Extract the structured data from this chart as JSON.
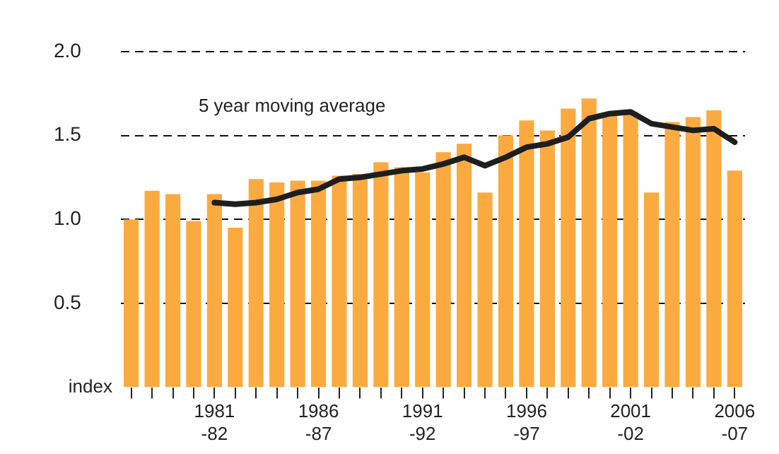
{
  "chart_data": {
    "type": "bar",
    "ylabel": "index",
    "annotations": [
      "5 year moving average"
    ],
    "categories": [
      null,
      null,
      null,
      null,
      "1981\n-82",
      null,
      null,
      null,
      null,
      "1986\n-87",
      null,
      null,
      null,
      null,
      "1991\n-92",
      null,
      null,
      null,
      null,
      "1996\n-97",
      null,
      null,
      null,
      null,
      "2001\n-02",
      null,
      null,
      null,
      null,
      "2006\n-07"
    ],
    "series": [
      {
        "color": "#fbaa40",
        "values": [
          1.0,
          1.17,
          1.15,
          0.99,
          1.15,
          0.95,
          1.24,
          1.22,
          1.23,
          1.23,
          1.26,
          1.27,
          1.34,
          1.31,
          1.28,
          1.4,
          1.45,
          1.16,
          1.5,
          1.59,
          1.53,
          1.66,
          1.72,
          1.62,
          1.64,
          1.16,
          1.58,
          1.61,
          1.65,
          1.29
        ]
      },
      {
        "type": "line",
        "color": "#1e1e1e",
        "values": [
          null,
          null,
          null,
          null,
          1.1,
          1.09,
          1.1,
          1.12,
          1.16,
          1.18,
          1.24,
          1.25,
          1.27,
          1.29,
          1.3,
          1.33,
          1.37,
          1.32,
          1.37,
          1.43,
          1.45,
          1.49,
          1.6,
          1.63,
          1.64,
          1.57,
          1.55,
          1.53,
          1.54,
          1.46
        ]
      }
    ],
    "ylim": [
      0,
      2
    ],
    "yticks": [
      {
        "value": 0.5,
        "label": "0.5"
      },
      {
        "value": 1,
        "label": "1.0"
      },
      {
        "value": 1.5,
        "label": "1.5"
      },
      {
        "value": 2,
        "label": "2.0"
      }
    ],
    "grid": "y",
    "legend": false,
    "marker": "none",
    "line_style": "solid"
  }
}
